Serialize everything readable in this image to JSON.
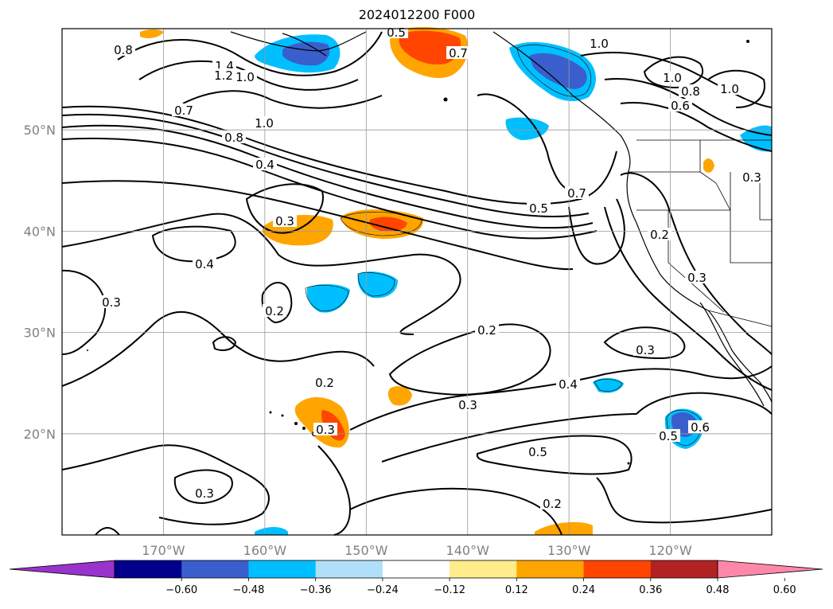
{
  "title": "2024012200 F000",
  "lat_labels": [
    {
      "text": "50°N",
      "lat": 50
    },
    {
      "text": "40°N",
      "lat": 40
    },
    {
      "text": "30°N",
      "lat": 30
    },
    {
      "text": "20°N",
      "lat": 20
    }
  ],
  "lon_labels": [
    {
      "text": "170°W",
      "lon": -170
    },
    {
      "text": "160°W",
      "lon": -160
    },
    {
      "text": "150°W",
      "lon": -150
    },
    {
      "text": "140°W",
      "lon": -140
    },
    {
      "text": "130°W",
      "lon": -130
    },
    {
      "text": "120°W",
      "lon": -120
    }
  ],
  "extent": {
    "lon_min": -180,
    "lon_max": -110,
    "lat_min": 10,
    "lat_max": 60
  },
  "contour_labels": [
    "0.8",
    "1.4",
    "1.2",
    "1.0",
    "0.5",
    "0.7",
    "1.0",
    "1.0",
    "0.8",
    "1.0",
    "0.6",
    "0.7",
    "1.0",
    "0.8",
    "0.4",
    "0.3",
    "0.3",
    "0.7",
    "0.5",
    "0.2",
    "0.4",
    "0.3",
    "0.2",
    "0.2",
    "0.3",
    "0.2",
    "0.3",
    "0.4",
    "0.3",
    "0.5",
    "0.6",
    "0.5",
    "0.3",
    "0.2",
    "0.3"
  ],
  "colorbar": {
    "colors": [
      "#9933cc",
      "#00008b",
      "#3a5fcd",
      "#00bfff",
      "#b0e0f8",
      "#ffffff",
      "#ffec8b",
      "#ffa500",
      "#ff4500",
      "#b22222",
      "#ff88aa"
    ],
    "tick_labels": [
      "−0.60",
      "−0.48",
      "−0.36",
      "−0.24",
      "−0.12",
      "0.12",
      "0.24",
      "0.36",
      "0.48",
      "0.60"
    ]
  }
}
